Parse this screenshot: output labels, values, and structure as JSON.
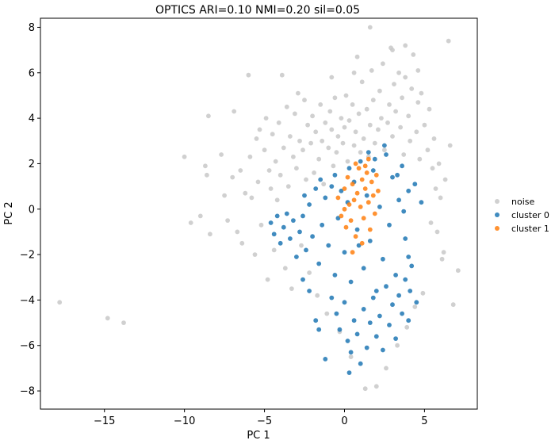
{
  "chart_data": {
    "type": "scatter",
    "title": "OPTICS   ARI=0.10  NMI=0.20  sil=0.05",
    "xlabel": "PC 1",
    "ylabel": "PC 2",
    "xlim": [
      -19.0,
      8.3
    ],
    "ylim": [
      -8.8,
      8.4
    ],
    "xticks": [
      -15,
      -10,
      -5,
      0,
      5
    ],
    "xtick_labels": [
      "−15",
      "−10",
      "−5",
      "0",
      "5"
    ],
    "yticks": [
      -8,
      -6,
      -4,
      -2,
      0,
      2,
      4,
      6,
      8
    ],
    "ytick_labels": [
      "−8",
      "−6",
      "−4",
      "−2",
      "0",
      "2",
      "4",
      "6",
      "8"
    ],
    "grid": false,
    "legend": "right",
    "series": [
      {
        "name": "noise",
        "color": "#c8c8c8",
        "points": [
          [
            -17.8,
            -4.1
          ],
          [
            -14.8,
            -4.8
          ],
          [
            -13.8,
            -5.0
          ],
          [
            -10.0,
            2.3
          ],
          [
            -9.6,
            -0.6
          ],
          [
            -9.0,
            -0.3
          ],
          [
            -8.7,
            1.9
          ],
          [
            -8.6,
            1.5
          ],
          [
            -8.5,
            4.1
          ],
          [
            -8.4,
            -1.1
          ],
          [
            -7.7,
            2.4
          ],
          [
            -7.5,
            0.6
          ],
          [
            -7.3,
            -0.5
          ],
          [
            -7.0,
            1.4
          ],
          [
            -6.9,
            4.3
          ],
          [
            -6.7,
            -1.0
          ],
          [
            -6.5,
            1.7
          ],
          [
            -6.4,
            -1.5
          ],
          [
            -6.2,
            0.7
          ],
          [
            -6.0,
            5.9
          ],
          [
            -5.9,
            2.3
          ],
          [
            -5.8,
            0.5
          ],
          [
            -5.6,
            -2.0
          ],
          [
            -5.5,
            3.1
          ],
          [
            -5.4,
            1.2
          ],
          [
            -5.3,
            3.5
          ],
          [
            -5.2,
            -0.7
          ],
          [
            -5.0,
            2.6
          ],
          [
            -4.9,
            4.0
          ],
          [
            -4.8,
            -3.1
          ],
          [
            -4.7,
            1.7
          ],
          [
            -4.6,
            0.9
          ],
          [
            -4.5,
            3.3
          ],
          [
            -4.4,
            -1.8
          ],
          [
            -4.3,
            2.1
          ],
          [
            -4.2,
            0.4
          ],
          [
            -4.1,
            3.8
          ],
          [
            -4.0,
            1.5
          ],
          [
            -3.9,
            5.9
          ],
          [
            -3.8,
            2.7
          ],
          [
            -3.7,
            -2.6
          ],
          [
            -3.6,
            4.5
          ],
          [
            -3.5,
            1.0
          ],
          [
            -3.4,
            3.2
          ],
          [
            -3.3,
            -3.5
          ],
          [
            -3.2,
            2.3
          ],
          [
            -3.1,
            4.2
          ],
          [
            -3.0,
            1.8
          ],
          [
            -2.9,
            5.1
          ],
          [
            -2.8,
            3.0
          ],
          [
            -2.7,
            -1.6
          ],
          [
            -2.6,
            2.6
          ],
          [
            -2.5,
            4.8
          ],
          [
            -2.4,
            1.3
          ],
          [
            -2.3,
            3.7
          ],
          [
            -2.2,
            -2.8
          ],
          [
            -2.1,
            2.9
          ],
          [
            -2.0,
            4.1
          ],
          [
            -1.9,
            1.6
          ],
          [
            -1.8,
            3.4
          ],
          [
            -1.7,
            -3.8
          ],
          [
            -1.6,
            2.2
          ],
          [
            -1.5,
            4.6
          ],
          [
            -1.4,
            3.0
          ],
          [
            -1.3,
            1.1
          ],
          [
            -1.2,
            3.8
          ],
          [
            -1.1,
            -4.6
          ],
          [
            -1.0,
            2.7
          ],
          [
            -0.9,
            4.3
          ],
          [
            -0.8,
            3.5
          ],
          [
            -0.7,
            1.9
          ],
          [
            -0.6,
            4.9
          ],
          [
            -0.5,
            2.5
          ],
          [
            -0.4,
            3.2
          ],
          [
            -0.3,
            -5.4
          ],
          [
            -0.2,
            4.0
          ],
          [
            -0.1,
            2.9
          ],
          [
            0.0,
            3.6
          ],
          [
            0.1,
            5.0
          ],
          [
            0.2,
            2.1
          ],
          [
            0.3,
            3.9
          ],
          [
            0.4,
            -6.5
          ],
          [
            0.5,
            4.6
          ],
          [
            0.6,
            2.8
          ],
          [
            0.7,
            3.4
          ],
          [
            0.8,
            6.7
          ],
          [
            0.9,
            4.2
          ],
          [
            1.0,
            2.5
          ],
          [
            1.1,
            5.6
          ],
          [
            1.2,
            3.1
          ],
          [
            1.3,
            -7.9
          ],
          [
            1.4,
            4.4
          ],
          [
            1.5,
            2.3
          ],
          [
            1.6,
            3.7
          ],
          [
            1.7,
            6.1
          ],
          [
            1.8,
            4.8
          ],
          [
            1.9,
            2.9
          ],
          [
            2.0,
            -7.8
          ],
          [
            2.1,
            3.5
          ],
          [
            2.2,
            5.2
          ],
          [
            2.3,
            4.0
          ],
          [
            2.4,
            6.4
          ],
          [
            2.5,
            2.6
          ],
          [
            2.6,
            -7.0
          ],
          [
            2.7,
            3.8
          ],
          [
            2.8,
            4.6
          ],
          [
            2.9,
            7.1
          ],
          [
            3.0,
            3.2
          ],
          [
            3.1,
            5.5
          ],
          [
            3.2,
            4.3
          ],
          [
            3.3,
            -6.0
          ],
          [
            3.4,
            6.0
          ],
          [
            3.5,
            3.6
          ],
          [
            3.6,
            4.9
          ],
          [
            3.7,
            2.4
          ],
          [
            3.8,
            5.8
          ],
          [
            3.9,
            -5.2
          ],
          [
            4.0,
            4.1
          ],
          [
            4.1,
            3.0
          ],
          [
            4.2,
            5.3
          ],
          [
            4.3,
            6.8
          ],
          [
            4.4,
            -4.3
          ],
          [
            4.5,
            3.4
          ],
          [
            4.6,
            4.7
          ],
          [
            4.7,
            2.2
          ],
          [
            4.8,
            5.1
          ],
          [
            4.9,
            -3.7
          ],
          [
            5.0,
            3.7
          ],
          [
            5.2,
            2.6
          ],
          [
            5.3,
            4.4
          ],
          [
            5.5,
            1.8
          ],
          [
            5.6,
            3.1
          ],
          [
            5.8,
            -1.0
          ],
          [
            5.9,
            2.0
          ],
          [
            6.0,
            0.5
          ],
          [
            6.1,
            -2.2
          ],
          [
            6.3,
            1.3
          ],
          [
            6.5,
            7.4
          ],
          [
            6.6,
            2.8
          ],
          [
            6.8,
            -4.2
          ],
          [
            7.1,
            -2.7
          ],
          [
            6.2,
            -1.9
          ],
          [
            5.7,
            0.9
          ],
          [
            5.4,
            -0.6
          ],
          [
            1.6,
            8.0
          ],
          [
            0.6,
            6.0
          ],
          [
            -0.8,
            5.8
          ],
          [
            3.0,
            7.0
          ],
          [
            3.8,
            7.2
          ],
          [
            4.6,
            6.1
          ]
        ]
      },
      {
        "name": "cluster 0",
        "color": "#1f77b4",
        "points": [
          [
            -4.6,
            -0.6
          ],
          [
            -4.4,
            -1.1
          ],
          [
            -4.2,
            -0.3
          ],
          [
            -4.0,
            -1.5
          ],
          [
            -3.8,
            -0.8
          ],
          [
            -3.6,
            -0.2
          ],
          [
            -3.4,
            -1.3
          ],
          [
            -3.2,
            -0.5
          ],
          [
            -3.0,
            -2.1
          ],
          [
            -2.8,
            -1.0
          ],
          [
            -2.6,
            -0.3
          ],
          [
            -2.4,
            -1.8
          ],
          [
            -2.2,
            0.2
          ],
          [
            -2.0,
            -1.2
          ],
          [
            -1.8,
            0.9
          ],
          [
            -1.6,
            -2.4
          ],
          [
            -1.4,
            -0.7
          ],
          [
            -1.2,
            0.5
          ],
          [
            -1.0,
            -1.6
          ],
          [
            -0.8,
            1.0
          ],
          [
            -0.6,
            -2.9
          ],
          [
            -0.4,
            -0.4
          ],
          [
            -0.2,
            0.8
          ],
          [
            0.0,
            -1.9
          ],
          [
            0.2,
            0.3
          ],
          [
            0.4,
            -3.2
          ],
          [
            0.6,
            1.2
          ],
          [
            0.8,
            -0.9
          ],
          [
            1.0,
            2.1
          ],
          [
            1.2,
            -2.6
          ],
          [
            1.4,
            0.6
          ],
          [
            1.6,
            -1.4
          ],
          [
            1.8,
            1.7
          ],
          [
            2.0,
            -3.6
          ],
          [
            2.2,
            0.1
          ],
          [
            2.4,
            -2.2
          ],
          [
            2.6,
            2.4
          ],
          [
            2.8,
            -0.7
          ],
          [
            3.0,
            1.4
          ],
          [
            3.2,
            -2.9
          ],
          [
            3.4,
            0.4
          ],
          [
            3.6,
            1.9
          ],
          [
            3.8,
            -1.3
          ],
          [
            4.0,
            0.8
          ],
          [
            4.2,
            -2.5
          ],
          [
            4.4,
            1.1
          ],
          [
            -0.8,
            -3.9
          ],
          [
            -0.5,
            -4.6
          ],
          [
            -0.3,
            -5.3
          ],
          [
            0.0,
            -4.1
          ],
          [
            0.2,
            -5.8
          ],
          [
            0.4,
            -6.3
          ],
          [
            0.6,
            -4.9
          ],
          [
            0.8,
            -5.5
          ],
          [
            1.0,
            -6.8
          ],
          [
            1.2,
            -4.4
          ],
          [
            1.4,
            -6.1
          ],
          [
            1.6,
            -5.0
          ],
          [
            1.8,
            -3.9
          ],
          [
            2.0,
            -5.6
          ],
          [
            2.2,
            -4.7
          ],
          [
            2.4,
            -6.2
          ],
          [
            2.6,
            -3.4
          ],
          [
            2.8,
            -5.1
          ],
          [
            3.0,
            -4.2
          ],
          [
            3.2,
            -5.7
          ],
          [
            3.4,
            -3.8
          ],
          [
            3.6,
            -4.6
          ],
          [
            3.8,
            -3.1
          ],
          [
            4.0,
            -4.9
          ],
          [
            0.3,
            -7.2
          ],
          [
            -1.2,
            -6.6
          ],
          [
            -1.6,
            -5.3
          ],
          [
            -1.8,
            -4.9
          ],
          [
            -2.2,
            -3.6
          ],
          [
            -2.6,
            -3.1
          ],
          [
            4.1,
            -3.6
          ],
          [
            4.5,
            -4.1
          ],
          [
            4.0,
            -2.1
          ],
          [
            3.3,
            1.5
          ],
          [
            2.5,
            2.8
          ],
          [
            1.5,
            2.5
          ],
          [
            0.3,
            1.8
          ],
          [
            -0.6,
            1.5
          ],
          [
            -1.5,
            1.3
          ],
          [
            -2.5,
            0.6
          ],
          [
            1.9,
            2.2
          ],
          [
            4.8,
            0.3
          ],
          [
            3.7,
            -0.1
          ],
          [
            0.9,
            -1.6
          ]
        ]
      },
      {
        "name": "cluster 1",
        "color": "#ff7f0e",
        "points": [
          [
            -0.4,
            0.5
          ],
          [
            -0.2,
            -0.3
          ],
          [
            0.0,
            0.9
          ],
          [
            0.1,
            -0.8
          ],
          [
            0.2,
            1.4
          ],
          [
            0.3,
            0.2
          ],
          [
            0.4,
            -0.5
          ],
          [
            0.5,
            1.1
          ],
          [
            0.6,
            0.4
          ],
          [
            0.7,
            -1.2
          ],
          [
            0.8,
            0.7
          ],
          [
            0.9,
            1.8
          ],
          [
            1.0,
            0.1
          ],
          [
            1.1,
            1.3
          ],
          [
            1.2,
            -0.4
          ],
          [
            1.3,
            0.9
          ],
          [
            1.4,
            1.6
          ],
          [
            1.5,
            0.3
          ],
          [
            1.6,
            -0.9
          ],
          [
            1.7,
            1.2
          ],
          [
            1.8,
            0.6
          ],
          [
            1.9,
            -0.2
          ],
          [
            2.0,
            1.5
          ],
          [
            2.1,
            0.8
          ],
          [
            0.5,
            -1.9
          ],
          [
            1.1,
            -1.5
          ],
          [
            0.7,
            2.0
          ],
          [
            1.3,
            1.9
          ],
          [
            0.0,
            0.0
          ],
          [
            1.5,
            2.2
          ]
        ]
      }
    ]
  }
}
